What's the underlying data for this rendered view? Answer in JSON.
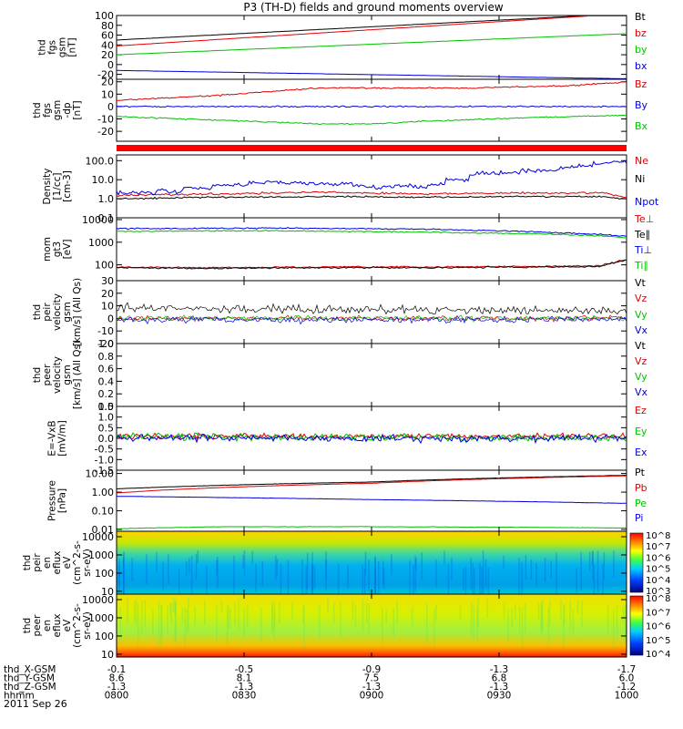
{
  "title": "P3 (TH-D) fields and ground moments overview",
  "date": "2011 Sep 26",
  "chart_data": {
    "type": "line",
    "x_time_labels": [
      "0800",
      "0830",
      "0900",
      "0930",
      "1000"
    ],
    "panels": [
      {
        "id": "fgs-gsm",
        "ylabel": [
          "thd",
          "fgs",
          "gsm",
          "[nT]"
        ],
        "yscale": "linear",
        "ylim": [
          -30,
          100
        ],
        "ticks": [
          100,
          80,
          60,
          40,
          20,
          0,
          -20
        ],
        "series": [
          {
            "name": "Bt",
            "color": "#000000",
            "start": 50,
            "end": 104,
            "noise": 0.2,
            "clip": true
          },
          {
            "name": "bz",
            "color": "#e00000",
            "start": 38,
            "end": 104,
            "noise": 0.3,
            "clip": true
          },
          {
            "name": "by",
            "color": "#00c000",
            "start": 20,
            "end": 63,
            "noise": 0.3
          },
          {
            "name": "bx",
            "color": "#0000e0",
            "start": -12,
            "end": -29,
            "noise": 0.3
          }
        ]
      },
      {
        "id": "fgs-gsm-dp",
        "ylabel": [
          "thd",
          "fgs",
          "gsm",
          "-dp",
          "[nT]"
        ],
        "yscale": "linear",
        "ylim": [
          -28,
          22
        ],
        "ticks": [
          20,
          10,
          0,
          -10,
          -20
        ],
        "series": [
          {
            "name": "Bz",
            "color": "#e00000",
            "points": [
              [
                0,
                5
              ],
              [
                0.1,
                7
              ],
              [
                0.2,
                9
              ],
              [
                0.3,
                12
              ],
              [
                0.4,
                15
              ],
              [
                0.5,
                15
              ],
              [
                0.6,
                15
              ],
              [
                0.7,
                15
              ],
              [
                0.8,
                16
              ],
              [
                0.9,
                17
              ],
              [
                1,
                20
              ]
            ],
            "noise": 0.8
          },
          {
            "name": "By",
            "color": "#0000e0",
            "points": [
              [
                0,
                0
              ],
              [
                1,
                0
              ]
            ],
            "noise": 0.8
          },
          {
            "name": "Bx",
            "color": "#00c000",
            "points": [
              [
                0,
                -8
              ],
              [
                0.2,
                -11
              ],
              [
                0.4,
                -14
              ],
              [
                0.5,
                -14
              ],
              [
                0.6,
                -12
              ],
              [
                0.8,
                -9
              ],
              [
                0.9,
                -8
              ],
              [
                1,
                -7
              ]
            ],
            "noise": 0.7
          }
        ]
      },
      {
        "id": "density",
        "ylabel": [
          "Density",
          "[1/cc]",
          "[cm-3]"
        ],
        "yscale": "log",
        "ylim": [
          0.1,
          200
        ],
        "ticks": [
          {
            "v": 100,
            "label": "100.0"
          },
          {
            "v": 10,
            "label": "10.0"
          },
          {
            "v": 1,
            "label": "1.0"
          },
          {
            "v": 0.1,
            "label": "0.1"
          }
        ],
        "series": [
          {
            "name": "Ne",
            "color": "#e00000",
            "points": [
              [
                0,
                1.5
              ],
              [
                0.2,
                1.8
              ],
              [
                0.4,
                2.2
              ],
              [
                0.6,
                1.8
              ],
              [
                0.8,
                2.0
              ],
              [
                0.95,
                2.0
              ],
              [
                1,
                1.2
              ]
            ],
            "noise": 0.08
          },
          {
            "name": "Ni",
            "color": "#000000",
            "points": [
              [
                0,
                1.0
              ],
              [
                0.2,
                1.2
              ],
              [
                0.4,
                1.3
              ],
              [
                0.6,
                1.2
              ],
              [
                0.8,
                1.3
              ],
              [
                0.95,
                1.3
              ],
              [
                1,
                0.9
              ]
            ],
            "noise": 0.06
          },
          {
            "name": "Npot",
            "color": "#0000e0",
            "points": [
              [
                0,
                2.2
              ],
              [
                0.1,
                2.5
              ],
              [
                0.15,
                4
              ],
              [
                0.2,
                6
              ],
              [
                0.3,
                8
              ],
              [
                0.4,
                6
              ],
              [
                0.5,
                4
              ],
              [
                0.6,
                4.5
              ],
              [
                0.7,
                20
              ],
              [
                0.8,
                30
              ],
              [
                0.9,
                45
              ],
              [
                0.95,
                80
              ],
              [
                1,
                100
              ]
            ],
            "noise": 0.15,
            "steps": true
          }
        ]
      },
      {
        "id": "temperature",
        "ylabel": [
          "mom",
          "gt3",
          "[eV]"
        ],
        "yscale": "log",
        "ylim": [
          20,
          12000
        ],
        "ticks": [
          {
            "v": 10000,
            "label": "10000"
          },
          {
            "v": 1000,
            "label": "1000"
          },
          {
            "v": 100,
            "label": "100"
          }
        ],
        "series": [
          {
            "name": "Te⊥",
            "color": "#e00000",
            "points": [
              [
                0,
                80
              ],
              [
                0.2,
                75
              ],
              [
                0.4,
                80
              ],
              [
                0.6,
                80
              ],
              [
                0.8,
                85
              ],
              [
                0.95,
                90
              ],
              [
                1,
                170
              ]
            ],
            "noise": 0.05
          },
          {
            "name": "Te∥",
            "color": "#000000",
            "points": [
              [
                0,
                75
              ],
              [
                0.2,
                70
              ],
              [
                0.4,
                75
              ],
              [
                0.6,
                75
              ],
              [
                0.8,
                80
              ],
              [
                0.95,
                85
              ],
              [
                1,
                160
              ]
            ],
            "noise": 0.05
          },
          {
            "name": "Ti⊥",
            "color": "#0000e0",
            "points": [
              [
                0,
                4000
              ],
              [
                0.3,
                4200
              ],
              [
                0.6,
                3800
              ],
              [
                0.8,
                3000
              ],
              [
                0.95,
                2200
              ],
              [
                1,
                1800
              ]
            ],
            "noise": 0.04
          },
          {
            "name": "Ti∥",
            "color": "#00c000",
            "points": [
              [
                0,
                3000
              ],
              [
                0.3,
                3200
              ],
              [
                0.6,
                2800
              ],
              [
                0.8,
                2400
              ],
              [
                0.95,
                1900
              ],
              [
                1,
                1600
              ]
            ],
            "noise": 0.04
          }
        ]
      },
      {
        "id": "peir-velocity",
        "ylabel": [
          "thd",
          "peir",
          "velocity",
          "gsm",
          "[km/s] (All Qs)"
        ],
        "yscale": "linear",
        "ylim": [
          -20,
          30
        ],
        "ticks": [
          30,
          20,
          10,
          0,
          -10,
          -20
        ],
        "series": [
          {
            "name": "Vt",
            "color": "#000000",
            "points": [
              [
                0,
                8
              ],
              [
                1,
                6
              ]
            ],
            "noise": 5
          },
          {
            "name": "Vz",
            "color": "#e00000",
            "points": [
              [
                0,
                0
              ],
              [
                1,
                0
              ]
            ],
            "noise": 3
          },
          {
            "name": "Vy",
            "color": "#00c000",
            "points": [
              [
                0,
                0
              ],
              [
                1,
                0
              ]
            ],
            "noise": 3
          },
          {
            "name": "Vx",
            "color": "#0000e0",
            "points": [
              [
                0,
                -1
              ],
              [
                1,
                -1
              ]
            ],
            "noise": 4
          }
        ]
      },
      {
        "id": "peer-velocity",
        "ylabel": [
          "thd",
          "peer",
          "velocity",
          "gsm",
          "[km/s] (All Qs)"
        ],
        "yscale": "linear",
        "ylim": [
          0,
          1
        ],
        "ticks": [
          {
            "v": 1.0,
            "label": "1.0"
          },
          {
            "v": 0.8,
            "label": "0.8"
          },
          {
            "v": 0.6,
            "label": "0.6"
          },
          {
            "v": 0.4,
            "label": "0.4"
          },
          {
            "v": 0.2,
            "label": "0.2"
          },
          {
            "v": 0.0,
            "label": "0.0"
          }
        ],
        "series": [
          {
            "name": "Vt",
            "color": "#000000"
          },
          {
            "name": "Vz",
            "color": "#e00000"
          },
          {
            "name": "Vy",
            "color": "#00c000"
          },
          {
            "name": "Vx",
            "color": "#0000e0"
          }
        ]
      },
      {
        "id": "efield",
        "ylabel": [
          "E=-VxB",
          "[mV/m]"
        ],
        "yscale": "linear",
        "ylim": [
          -1.5,
          1.5
        ],
        "ticks": [
          {
            "v": 1.5,
            "label": "1.5"
          },
          {
            "v": 1.0,
            "label": "1.0"
          },
          {
            "v": 0.5,
            "label": "0.5"
          },
          {
            "v": 0.0,
            "label": "0.0"
          },
          {
            "v": -0.5,
            "label": "-0.5"
          },
          {
            "v": -1.0,
            "label": "-1.0"
          },
          {
            "v": -1.5,
            "label": "-1.5"
          }
        ],
        "series": [
          {
            "name": "Ez",
            "color": "#e00000",
            "points": [
              [
                0,
                0.1
              ],
              [
                1,
                0.1
              ]
            ],
            "noise": 0.18
          },
          {
            "name": "Ey",
            "color": "#00c000",
            "points": [
              [
                0,
                0.1
              ],
              [
                1,
                0
              ]
            ],
            "noise": 0.25
          },
          {
            "name": "Ex",
            "color": "#0000e0",
            "points": [
              [
                0,
                0
              ],
              [
                1,
                0
              ]
            ],
            "noise": 0.25
          }
        ]
      },
      {
        "id": "pressure",
        "ylabel": [
          "Pressure",
          "[nPa]"
        ],
        "yscale": "log",
        "ylim": [
          0.008,
          15
        ],
        "ticks": [
          {
            "v": 10,
            "label": "10.00"
          },
          {
            "v": 1,
            "label": "1.00"
          },
          {
            "v": 0.1,
            "label": "0.10"
          },
          {
            "v": 0.01,
            "label": "0.01"
          }
        ],
        "series": [
          {
            "name": "Pt",
            "color": "#000000",
            "points": [
              [
                0,
                1.5
              ],
              [
                0.5,
                3.5
              ],
              [
                1,
                8
              ]
            ],
            "noise": 0.01
          },
          {
            "name": "Pb",
            "color": "#e00000",
            "points": [
              [
                0,
                0.9
              ],
              [
                0.5,
                3.0
              ],
              [
                1,
                7.5
              ]
            ],
            "noise": 0.01
          },
          {
            "name": "Pe",
            "color": "#00c000",
            "points": [
              [
                0,
                0.011
              ],
              [
                0.2,
                0.014
              ],
              [
                0.5,
                0.014
              ],
              [
                0.8,
                0.013
              ],
              [
                1,
                0.012
              ]
            ],
            "noise": 0.02
          },
          {
            "name": "Pi",
            "color": "#0000e0",
            "points": [
              [
                0,
                0.6
              ],
              [
                0.5,
                0.4
              ],
              [
                1,
                0.25
              ]
            ],
            "noise": 0.01
          }
        ]
      },
      {
        "id": "peir-eflux",
        "type": "heatmap",
        "ylabel": [
          "thd",
          "peir",
          "en",
          "eflux",
          "eV",
          "(cm^2-s-",
          "sr-eV)"
        ],
        "yscale": "log",
        "ylim": [
          7,
          20000
        ],
        "ticks": [
          {
            "v": 10000,
            "label": "10000"
          },
          {
            "v": 1000,
            "label": "1000"
          },
          {
            "v": 100,
            "label": "100"
          },
          {
            "v": 10,
            "label": "10"
          }
        ],
        "colorbar": [
          "10^3",
          "10^4",
          "10^5",
          "10^6",
          "10^7",
          "10^8"
        ]
      },
      {
        "id": "peer-eflux",
        "type": "heatmap",
        "ylabel": [
          "thd",
          "peer",
          "en",
          "eflux",
          "eV",
          "(cm^2-s-",
          "sr-eV)"
        ],
        "yscale": "log",
        "ylim": [
          7,
          20000
        ],
        "ticks": [
          {
            "v": 10000,
            "label": "10000"
          },
          {
            "v": 1000,
            "label": "1000"
          },
          {
            "v": 100,
            "label": "100"
          },
          {
            "v": 10,
            "label": "10"
          }
        ],
        "colorbar": [
          "10^4",
          "10^5",
          "10^6",
          "10^7",
          "10^8"
        ]
      }
    ],
    "ephemeris": [
      {
        "label": "thd_X-GSM",
        "values": [
          "-0.1",
          "-0.5",
          "-0.9",
          "-1.3",
          "-1.7"
        ]
      },
      {
        "label": "thd_Y-GSM",
        "values": [
          "8.6",
          "8.1",
          "7.5",
          "6.8",
          "6.0"
        ]
      },
      {
        "label": "thd_Z-GSM",
        "values": [
          "-1.3",
          "-1.3",
          "-1.3",
          "-1.3",
          "-1.2"
        ]
      },
      {
        "label": "hhmm",
        "values": [
          "0800",
          "0830",
          "0900",
          "0930",
          "1000"
        ]
      }
    ]
  }
}
